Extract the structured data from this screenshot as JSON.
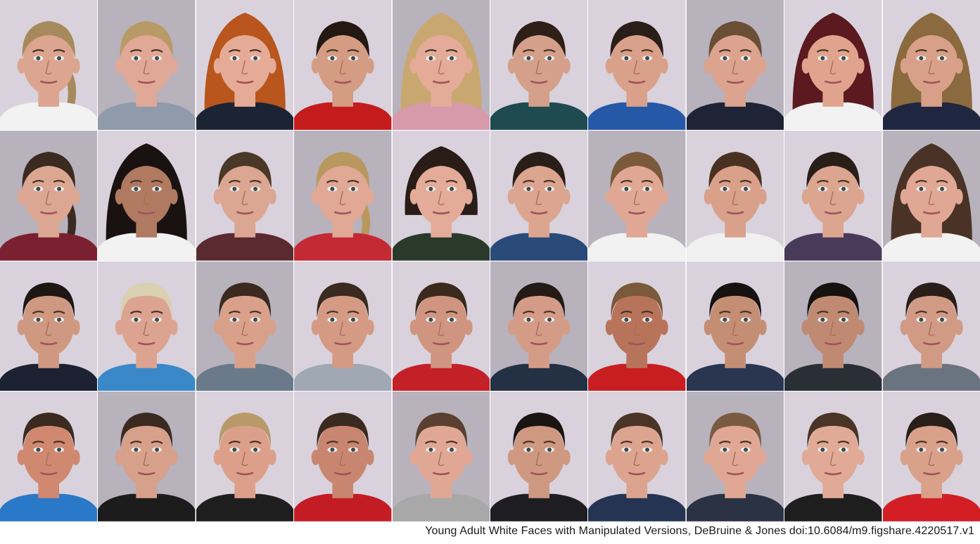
{
  "caption": "Young Adult White Faces with Manipulated Versions, DeBruine & Jones doi:10.6084/m9.figshare.4220517.v1",
  "palette": {
    "background_light": "#d9d2dc",
    "background_dark": "#b8b2bd"
  },
  "faces": [
    {
      "gender": "female",
      "hair": "#a68a5c",
      "hair_style": "ponytail",
      "shirt": "#f2f2f2",
      "skin": "#dba590"
    },
    {
      "gender": "female",
      "hair": "#b89a66",
      "hair_style": "pulled-back",
      "shirt": "#8f9aaa",
      "skin": "#e0a896"
    },
    {
      "gender": "female",
      "hair": "#b8561e",
      "hair_style": "curly",
      "shirt": "#1c2434",
      "skin": "#e6ab96"
    },
    {
      "gender": "female",
      "hair": "#241812",
      "hair_style": "pulled-back",
      "shirt": "#c41c1c",
      "skin": "#d49c82"
    },
    {
      "gender": "female",
      "hair": "#c8a870",
      "hair_style": "curly",
      "shirt": "#d69aaa",
      "skin": "#e3ab98"
    },
    {
      "gender": "female",
      "hair": "#2e2018",
      "hair_style": "pulled-back",
      "shirt": "#1e4a50",
      "skin": "#d4a08a"
    },
    {
      "gender": "female",
      "hair": "#2a1e18",
      "hair_style": "short",
      "shirt": "#2658a8",
      "skin": "#d9a18a"
    },
    {
      "gender": "female",
      "hair": "#6a4e36",
      "hair_style": "pulled-back",
      "shirt": "#1e2436",
      "skin": "#dca38e"
    },
    {
      "gender": "female",
      "hair": "#5a1a20",
      "hair_style": "long",
      "shirt": "#f2f2f2",
      "skin": "#e0a48e"
    },
    {
      "gender": "female",
      "hair": "#8a6a3e",
      "hair_style": "curly",
      "shirt": "#1e2640",
      "skin": "#d8a088"
    },
    {
      "gender": "female",
      "hair": "#3a2a20",
      "hair_style": "ponytail",
      "shirt": "#7a2030",
      "skin": "#dca792"
    },
    {
      "gender": "female",
      "hair": "#1a1210",
      "hair_style": "curly",
      "shirt": "#f2f2f2",
      "skin": "#b07a60"
    },
    {
      "gender": "female",
      "hair": "#4a3828",
      "hair_style": "pulled-back",
      "shirt": "#5a2a30",
      "skin": "#dba692"
    },
    {
      "gender": "female",
      "hair": "#b8985e",
      "hair_style": "ponytail",
      "shirt": "#c42a34",
      "skin": "#e0a895"
    },
    {
      "gender": "female",
      "hair": "#2a1c16",
      "hair_style": "bob",
      "shirt": "#2a3a2a",
      "skin": "#e3ab98"
    },
    {
      "gender": "female",
      "hair": "#2a1e18",
      "hair_style": "pulled-back",
      "shirt": "#2a4a7a",
      "skin": "#dca590"
    },
    {
      "gender": "female",
      "hair": "#7a5a3a",
      "hair_style": "pulled-back",
      "shirt": "#f2f2f2",
      "skin": "#e0a894"
    },
    {
      "gender": "female",
      "hair": "#4a3020",
      "hair_style": "pulled-back",
      "shirt": "#f0f0f0",
      "skin": "#d9a08a"
    },
    {
      "gender": "female",
      "hair": "#2a1e18",
      "hair_style": "pulled-back",
      "shirt": "#4a3a5a",
      "skin": "#dca590"
    },
    {
      "gender": "female",
      "hair": "#4a3226",
      "hair_style": "long",
      "shirt": "#f2f2f2",
      "skin": "#e0a894"
    },
    {
      "gender": "male",
      "hair": "#1e1612",
      "hair_style": "short",
      "shirt": "#1c2232",
      "skin": "#cf9880"
    },
    {
      "gender": "male",
      "hair": "#d8d0b0",
      "hair_style": "short",
      "shirt": "#3a88c8",
      "skin": "#dca490"
    },
    {
      "gender": "male",
      "hair": "#3a2a20",
      "hair_style": "short",
      "shirt": "#6a7a8a",
      "skin": "#d9a08a"
    },
    {
      "gender": "male",
      "hair": "#3a2a20",
      "hair_style": "short",
      "shirt": "#a0a8b4",
      "skin": "#d49a84"
    },
    {
      "gender": "male",
      "hair": "#3a2a1e",
      "hair_style": "short",
      "shirt": "#c42028",
      "skin": "#cf9580"
    },
    {
      "gender": "male",
      "hair": "#241a14",
      "hair_style": "short",
      "shirt": "#243044",
      "skin": "#d49c86"
    },
    {
      "gender": "male",
      "hair": "#7a5a3a",
      "hair_style": "short",
      "shirt": "#c81e22",
      "skin": "#b8745a"
    },
    {
      "gender": "male",
      "hair": "#161210",
      "hair_style": "short",
      "shirt": "#2a3650",
      "skin": "#c48e74"
    },
    {
      "gender": "male",
      "hair": "#161210",
      "hair_style": "short",
      "shirt": "#2a2e36",
      "skin": "#c08a72"
    },
    {
      "gender": "male",
      "hair": "#2a1e18",
      "hair_style": "short",
      "shirt": "#6a7480",
      "skin": "#d09a84"
    },
    {
      "gender": "male",
      "hair": "#3a2a20",
      "hair_style": "short",
      "shirt": "#2a78c8",
      "skin": "#d08870"
    },
    {
      "gender": "male",
      "hair": "#3a2a20",
      "hair_style": "short",
      "shirt": "#1c1c1c",
      "skin": "#d6a08a"
    },
    {
      "gender": "male",
      "hair": "#b89a6a",
      "hair_style": "short",
      "shirt": "#1e1e1e",
      "skin": "#dca08a"
    },
    {
      "gender": "male",
      "hair": "#3a2a20",
      "hair_style": "short",
      "shirt": "#c41c24",
      "skin": "#c88670"
    },
    {
      "gender": "male",
      "hair": "#5a4030",
      "hair_style": "short",
      "shirt": "#a8a8a8",
      "skin": "#e0a894"
    },
    {
      "gender": "male",
      "hair": "#1a1412",
      "hair_style": "short",
      "shirt": "#1e1e22",
      "skin": "#cf9880"
    },
    {
      "gender": "male",
      "hair": "#4a3426",
      "hair_style": "short",
      "shirt": "#243452",
      "skin": "#dca48e"
    },
    {
      "gender": "male",
      "hair": "#7a5a40",
      "hair_style": "short",
      "shirt": "#2a3244",
      "skin": "#e0a894"
    },
    {
      "gender": "male",
      "hair": "#4a3426",
      "hair_style": "short",
      "shirt": "#1e1e1e",
      "skin": "#e0aa96"
    },
    {
      "gender": "male",
      "hair": "#2a1e18",
      "hair_style": "short",
      "shirt": "#d21e24",
      "skin": "#d9a08a"
    }
  ]
}
